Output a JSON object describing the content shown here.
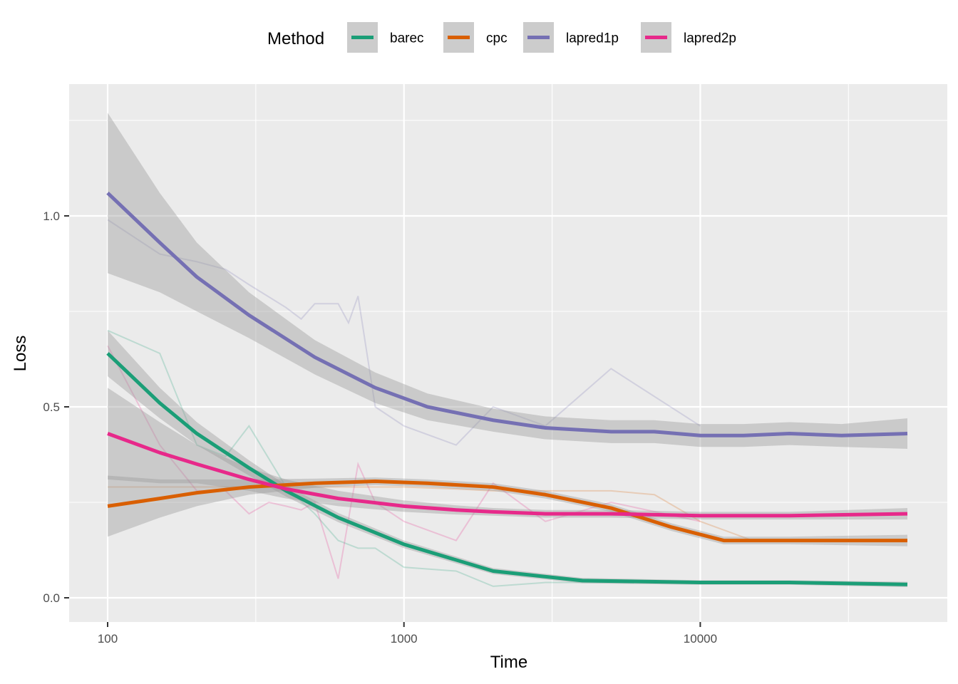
{
  "chart_data": {
    "type": "line",
    "xlabel": "Time",
    "ylabel": "Loss",
    "x_scale": "log10",
    "xlim": [
      100,
      50000
    ],
    "ylim": [
      0,
      1.0
    ],
    "x_ticks": [
      100,
      1000,
      10000
    ],
    "x_tick_labels": [
      "100",
      "1000",
      "10000"
    ],
    "y_ticks": [
      0,
      0.5,
      1.0
    ],
    "y_tick_labels": [
      "0.0",
      "0.5",
      "1.0"
    ],
    "grid": true,
    "legend": {
      "title": "Method",
      "position": "top"
    },
    "series": [
      {
        "name": "barec",
        "color": "#1b9e77",
        "smooth_x": [
          100,
          150,
          200,
          300,
          400,
          600,
          1000,
          2000,
          4000,
          10000,
          20000,
          50000
        ],
        "smooth_y": [
          0.64,
          0.51,
          0.43,
          0.34,
          0.28,
          0.21,
          0.14,
          0.07,
          0.045,
          0.04,
          0.04,
          0.035
        ],
        "band_half_width": [
          0.06,
          0.04,
          0.03,
          0.02,
          0.015,
          0.012,
          0.01,
          0.008,
          0.007,
          0.006,
          0.006,
          0.007
        ],
        "raw_x": [
          100,
          150,
          200,
          250,
          300,
          400,
          500,
          600,
          700,
          800,
          1000,
          1500,
          2000,
          3000,
          5000,
          10000
        ],
        "raw_y": [
          0.7,
          0.64,
          0.4,
          0.37,
          0.45,
          0.29,
          0.22,
          0.15,
          0.13,
          0.13,
          0.08,
          0.07,
          0.03,
          0.04,
          0.04,
          0.04
        ]
      },
      {
        "name": "cpc",
        "color": "#d95f02",
        "smooth_x": [
          100,
          150,
          200,
          300,
          500,
          800,
          1200,
          2000,
          3000,
          5000,
          8000,
          12000,
          20000,
          50000
        ],
        "smooth_y": [
          0.24,
          0.26,
          0.275,
          0.29,
          0.3,
          0.305,
          0.3,
          0.29,
          0.27,
          0.235,
          0.185,
          0.15,
          0.15,
          0.15
        ],
        "band_half_width": [
          0.08,
          0.05,
          0.035,
          0.02,
          0.012,
          0.01,
          0.01,
          0.01,
          0.01,
          0.01,
          0.01,
          0.01,
          0.01,
          0.015
        ],
        "raw_x": [
          100,
          200,
          300,
          500,
          800,
          1000,
          1500,
          2000,
          3000,
          5000,
          7000,
          10000,
          15000,
          20000,
          30000,
          50000
        ],
        "raw_y": [
          0.29,
          0.29,
          0.29,
          0.29,
          0.29,
          0.29,
          0.285,
          0.28,
          0.28,
          0.28,
          0.27,
          0.2,
          0.15,
          0.15,
          0.15,
          0.15
        ]
      },
      {
        "name": "lapred1p",
        "color": "#7570b3",
        "smooth_x": [
          100,
          150,
          200,
          300,
          500,
          800,
          1200,
          2000,
          3000,
          5000,
          7000,
          10000,
          14000,
          20000,
          30000,
          50000
        ],
        "smooth_y": [
          1.06,
          0.93,
          0.84,
          0.74,
          0.63,
          0.55,
          0.5,
          0.465,
          0.445,
          0.435,
          0.435,
          0.425,
          0.425,
          0.43,
          0.425,
          0.43
        ],
        "band_half_width": [
          0.21,
          0.13,
          0.09,
          0.06,
          0.045,
          0.04,
          0.035,
          0.03,
          0.03,
          0.03,
          0.03,
          0.03,
          0.03,
          0.03,
          0.03,
          0.04
        ],
        "raw_x": [
          100,
          150,
          200,
          250,
          300,
          400,
          450,
          500,
          600,
          650,
          700,
          800,
          1000,
          1500,
          2000,
          3000,
          5000,
          10000
        ],
        "raw_y": [
          0.99,
          0.9,
          0.88,
          0.86,
          0.82,
          0.76,
          0.73,
          0.77,
          0.77,
          0.72,
          0.79,
          0.5,
          0.45,
          0.4,
          0.5,
          0.45,
          0.6,
          0.45
        ]
      },
      {
        "name": "lapred2p",
        "color": "#e7298a",
        "smooth_x": [
          100,
          150,
          200,
          300,
          400,
          600,
          1000,
          1500,
          2000,
          3000,
          5000,
          10000,
          20000,
          50000
        ],
        "smooth_y": [
          0.43,
          0.38,
          0.35,
          0.31,
          0.285,
          0.26,
          0.24,
          0.23,
          0.225,
          0.22,
          0.22,
          0.215,
          0.215,
          0.22
        ],
        "band_half_width": [
          0.12,
          0.08,
          0.05,
          0.03,
          0.025,
          0.02,
          0.015,
          0.012,
          0.01,
          0.01,
          0.01,
          0.01,
          0.01,
          0.015
        ],
        "raw_x": [
          100,
          150,
          200,
          250,
          300,
          350,
          400,
          450,
          500,
          600,
          700,
          800,
          1000,
          1500,
          2000,
          3000,
          5000,
          10000
        ],
        "raw_y": [
          0.66,
          0.4,
          0.28,
          0.28,
          0.22,
          0.25,
          0.24,
          0.23,
          0.25,
          0.05,
          0.35,
          0.25,
          0.2,
          0.15,
          0.3,
          0.2,
          0.25,
          0.2
        ]
      }
    ]
  }
}
